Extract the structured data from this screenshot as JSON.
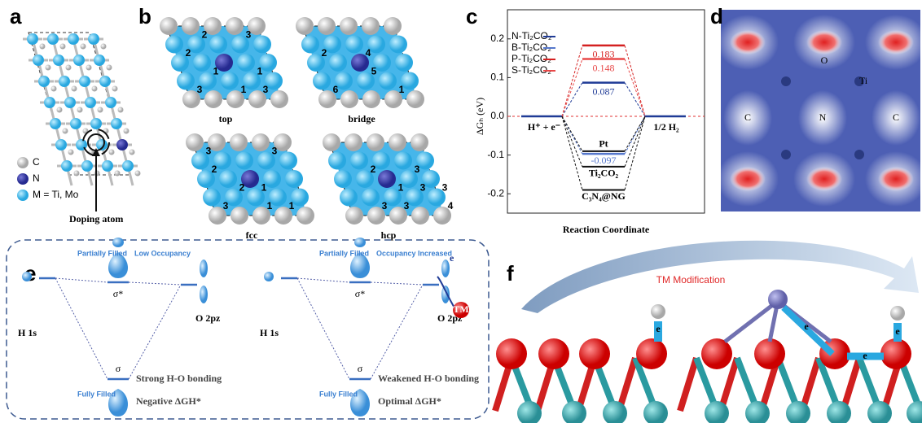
{
  "panels": {
    "a": {
      "label": "a",
      "legend": [
        "C",
        "N",
        "M = Ti, Mo"
      ],
      "note": "Doping atom"
    },
    "b": {
      "label": "b",
      "motifs": [
        {
          "name": "top",
          "sites": [
            "2",
            "2",
            "3",
            "1",
            "1",
            "3",
            "1",
            "3"
          ]
        },
        {
          "name": "bridge",
          "sites": [
            "2",
            "4",
            "5",
            "6",
            "1"
          ]
        },
        {
          "name": "fcc",
          "sites": [
            "3",
            "2",
            "3",
            "2",
            "1",
            "3",
            "1",
            "1"
          ]
        },
        {
          "name": "hcp",
          "sites": [
            "2",
            "3",
            "3",
            "1",
            "3",
            "3",
            "3",
            "4"
          ]
        }
      ]
    },
    "c": {
      "label": "c"
    },
    "d": {
      "label": "d",
      "atoms": [
        "O",
        "Ti",
        "C",
        "N",
        "C"
      ]
    },
    "e": {
      "label": "e",
      "left": {
        "top_fill": "Partially Filled",
        "top_occ": "Low Occupancy",
        "antibond": "σ*",
        "bond": "σ",
        "h": "H 1s",
        "o": "O 2pz",
        "bottom_fill": "Fully Filled",
        "bonding": "Strong H-O bonding",
        "dg": "Negative ΔGH*"
      },
      "right": {
        "top_fill": "Partially Filled",
        "top_occ": "Occupancy Increased",
        "electron": "e",
        "tm": "TM",
        "antibond": "σ*",
        "bond": "σ",
        "h": "H 1s",
        "o": "O 2pz",
        "bottom_fill": "Fully Filled",
        "bonding": "Weakened H-O bonding",
        "dg": "Optimal ΔGH*"
      }
    },
    "f": {
      "label": "f",
      "title": "TM Modification",
      "electrons": [
        "e",
        "e",
        "e",
        "e"
      ]
    }
  },
  "chart_data": {
    "type": "energy-level",
    "ylabel": "ΔGₕ (eV)",
    "xlabel": "Reaction Coordinate",
    "annotations": [
      "H⁺ + e⁻",
      "1/2 H₂"
    ],
    "ylim": [
      -0.25,
      0.25
    ],
    "yticks": [
      -0.2,
      -0.1,
      {
        "value": 0,
        "label": "0.0"
      },
      0.1,
      0.2
    ],
    "series": [
      {
        "name": "N-Ti₂CO₂",
        "color": "#1f3b96",
        "value": 0.087
      },
      {
        "name": "B-Ti₂CO₂",
        "color": "#5577cc",
        "value": -0.097
      },
      {
        "name": "P-Ti₂CO₂",
        "color": "#d42020",
        "value": 0.183
      },
      {
        "name": "S-Ti₂CO₂",
        "color": "#e84848",
        "value": 0.148
      }
    ],
    "references": [
      {
        "name": "Pt",
        "value": -0.09
      },
      {
        "name": "Ti₂CO₂",
        "value": -0.13
      },
      {
        "name": "C₃N₄@NG",
        "value": -0.19
      }
    ]
  }
}
